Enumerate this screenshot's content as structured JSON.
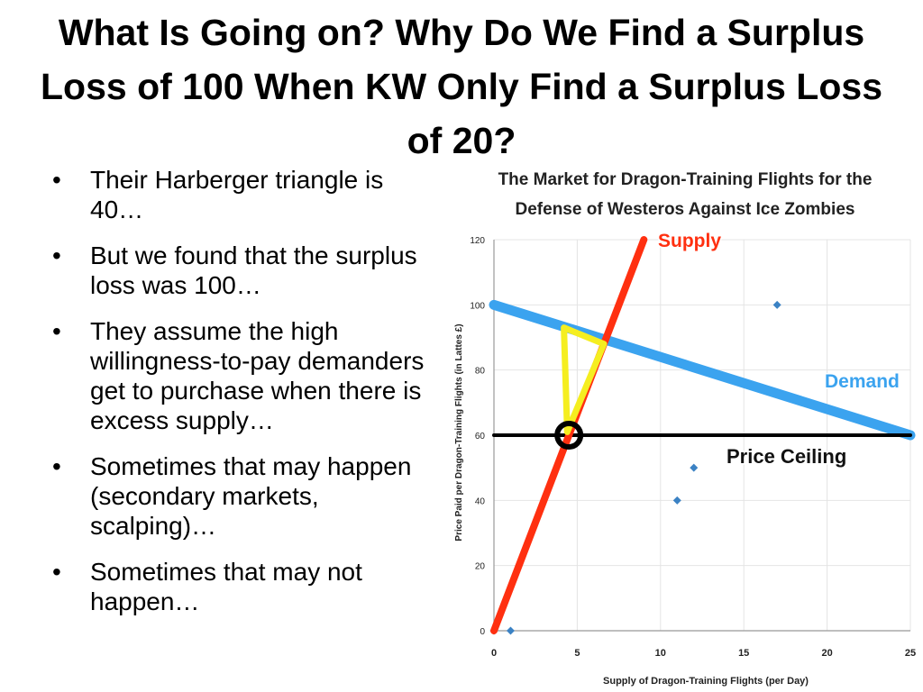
{
  "title": "What Is Going on? Why Do We Find a Surplus Loss of 100 When KW Only Find a Surplus Loss of 20?",
  "bullets": [
    "Their Harberger triangle is 40…",
    "But we found that the surplus loss was 100…",
    "They assume the high willingness-to-pay demanders get to purchase when there is excess supply…",
    "Sometimes that may happen (secondary markets, scalping)…",
    "Sometimes that may not happen…"
  ],
  "chart_data": {
    "type": "scatter",
    "title": "The Market for Dragon-Training Flights for the Defense of Westeros Against Ice Zombies",
    "xlabel": "Supply of Dragon-Training Flights (per Day)",
    "ylabel": "Price Paid per Dragon-Training Flights (in Lattes £)",
    "xlim": [
      0,
      25
    ],
    "ylim": [
      0,
      120
    ],
    "x_ticks": [
      0,
      5,
      10,
      15,
      20,
      25
    ],
    "y_ticks": [
      0,
      20,
      40,
      60,
      80,
      100,
      120
    ],
    "grid": true,
    "points": [
      {
        "x": 0,
        "y": 0
      },
      {
        "x": 1,
        "y": 0
      },
      {
        "x": 11,
        "y": 40
      },
      {
        "x": 12,
        "y": 50
      },
      {
        "x": 17,
        "y": 100
      }
    ],
    "lines": [
      {
        "name": "Supply",
        "color": "#ff3010",
        "points": [
          [
            0,
            0
          ],
          [
            9,
            120
          ]
        ]
      },
      {
        "name": "Demand",
        "color": "#3ba3ef",
        "points": [
          [
            0,
            100
          ],
          [
            25,
            60
          ]
        ]
      },
      {
        "name": "Price Ceiling",
        "color": "#000000",
        "points": [
          [
            0,
            60
          ],
          [
            25,
            60
          ]
        ]
      }
    ],
    "triangle": {
      "color": "#f5ee20",
      "points": [
        [
          4.2,
          93
        ],
        [
          4.4,
          61
        ],
        [
          6.6,
          88
        ]
      ]
    },
    "marker_circle": {
      "x": 4.5,
      "y": 60
    },
    "colors": {
      "marker": "#3b82c4",
      "grid": "#e4e4e4",
      "axis": "#999999",
      "label_outline": "#ffffff"
    }
  }
}
